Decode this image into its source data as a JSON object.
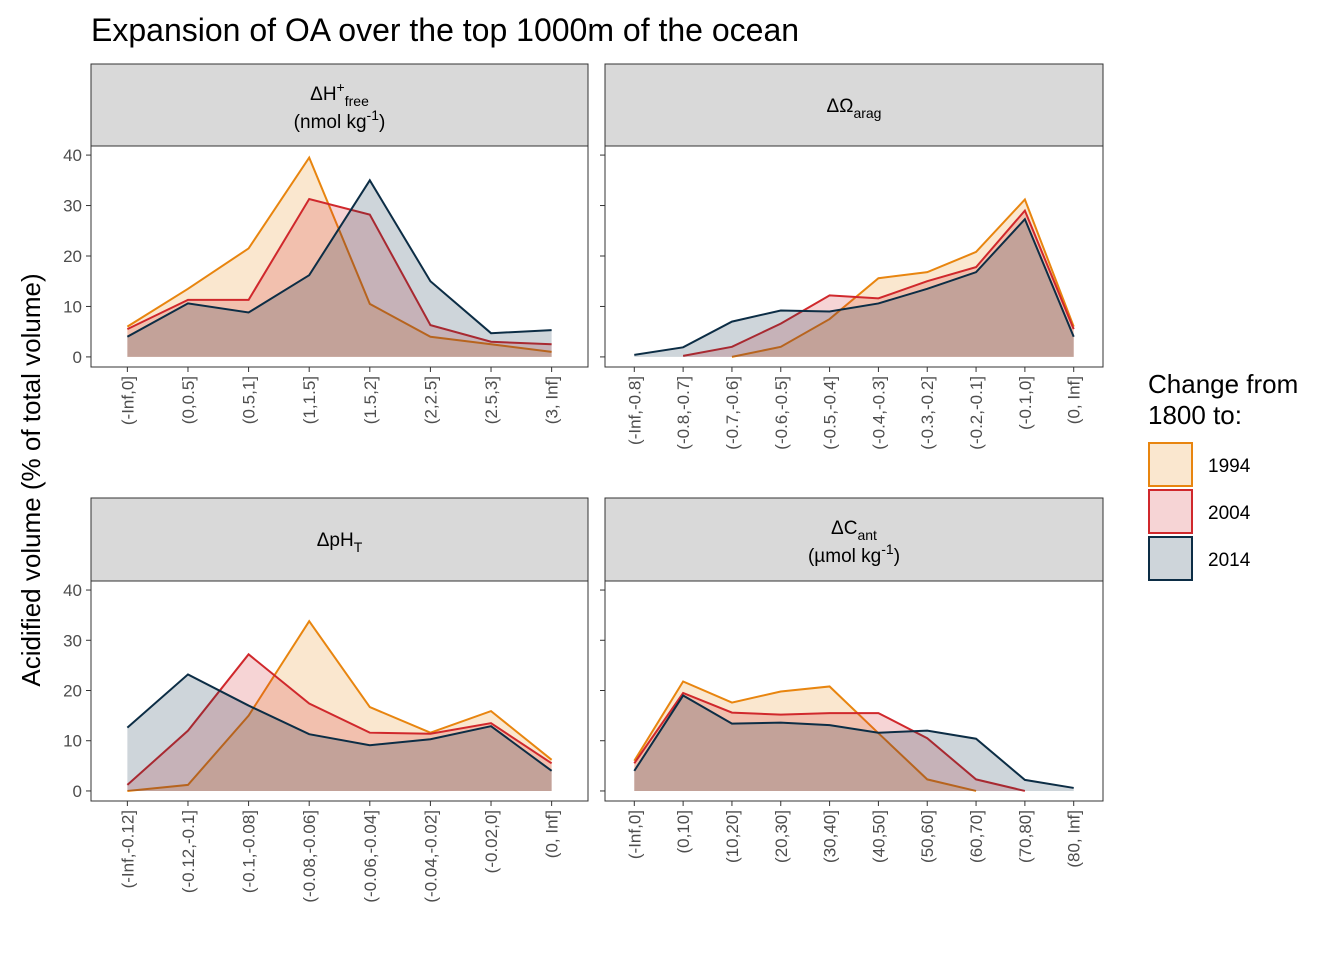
{
  "title": "Expansion of OA over the top 1000m of the ocean",
  "y_label": "Acidified volume (% of total volume)",
  "legend_title": [
    "Change from",
    "1800 to:"
  ],
  "chart_data": [
    {
      "type": "area",
      "title": [
        {
          "text": "ΔH"
        },
        {
          "text": "+",
          "pos": "sup"
        },
        {
          "text": "free",
          "pos": "sub"
        }
      ],
      "subtitle": [
        {
          "text": "(nmol kg"
        },
        {
          "text": "-1",
          "pos": "sup"
        },
        {
          "text": ")"
        }
      ],
      "categories": [
        "(-Inf,0]",
        "(0,0.5]",
        "(0.5,1]",
        "(1,1.5]",
        "(1.5,2]",
        "(2,2.5]",
        "(2.5,3]",
        "(3, Inf]"
      ],
      "ylim": [
        -2,
        41.8
      ],
      "yticks": [
        0,
        10,
        20,
        30,
        40
      ],
      "series": [
        {
          "name": "1994",
          "color": "#e8850f",
          "values": [
            6,
            13.5,
            21.5,
            39.5,
            10.5,
            4,
            2.5,
            1
          ]
        },
        {
          "name": "2004",
          "color": "#d0282c",
          "values": [
            5.5,
            11.3,
            11.3,
            31.3,
            28.2,
            6.3,
            3,
            2.5
          ]
        },
        {
          "name": "2014",
          "color": "#0c2d45",
          "values": [
            4,
            10.6,
            8.8,
            16.2,
            35,
            15,
            4.7,
            5.3
          ]
        }
      ]
    },
    {
      "type": "area",
      "title": [
        {
          "text": "ΔΩ"
        },
        {
          "text": "arag",
          "pos": "sub"
        }
      ],
      "categories": [
        "(-Inf,-0.8]",
        "(-0.8,-0.7]",
        "(-0.7,-0.6]",
        "(-0.6,-0.5]",
        "(-0.5,-0.4]",
        "(-0.4,-0.3]",
        "(-0.3,-0.2]",
        "(-0.2,-0.1]",
        "(-0.1,0]",
        "(0, Inf]"
      ],
      "ylim": [
        -2,
        41.8
      ],
      "yticks": [
        0,
        10,
        20,
        30,
        40
      ],
      "series": [
        {
          "name": "1994",
          "color": "#e8850f",
          "values": [
            null,
            null,
            0,
            2,
            7.5,
            15.6,
            16.8,
            20.8,
            31.2,
            6
          ]
        },
        {
          "name": "2004",
          "color": "#d0282c",
          "values": [
            null,
            0.2,
            2,
            6.6,
            12.2,
            11.6,
            15,
            17.8,
            29,
            5.5
          ]
        },
        {
          "name": "2014",
          "color": "#0c2d45",
          "values": [
            0.4,
            1.9,
            7,
            9.2,
            9,
            10.6,
            13.5,
            16.8,
            27.3,
            4
          ]
        }
      ]
    },
    {
      "type": "area",
      "title": [
        {
          "text": "ΔpH"
        },
        {
          "text": "T",
          "pos": "sub"
        }
      ],
      "categories": [
        "(-Inf,-0.12]",
        "(-0.12,-0.1]",
        "(-0.1,-0.08]",
        "(-0.08,-0.06]",
        "(-0.06,-0.04]",
        "(-0.04,-0.02]",
        "(-0.02,0]",
        "(0, Inf]"
      ],
      "ylim": [
        -2,
        41.8
      ],
      "yticks": [
        0,
        10,
        20,
        30,
        40
      ],
      "series": [
        {
          "name": "1994",
          "color": "#e8850f",
          "values": [
            0,
            1.2,
            15,
            33.8,
            16.7,
            11.6,
            15.9,
            6.2
          ]
        },
        {
          "name": "2004",
          "color": "#d0282c",
          "values": [
            1.2,
            12,
            27.2,
            17.4,
            11.6,
            11.4,
            13.5,
            5.5
          ]
        },
        {
          "name": "2014",
          "color": "#0c2d45",
          "values": [
            12.6,
            23.2,
            17,
            11.3,
            9.1,
            10.3,
            12.9,
            4
          ]
        }
      ]
    },
    {
      "type": "area",
      "title": [
        {
          "text": "ΔC"
        },
        {
          "text": "ant",
          "pos": "sub"
        }
      ],
      "subtitle": [
        {
          "text": "(µmol kg"
        },
        {
          "text": "-1",
          "pos": "sup"
        },
        {
          "text": ")"
        }
      ],
      "categories": [
        "(-Inf,0]",
        "(0,10]",
        "(10,20]",
        "(20,30]",
        "(30,40]",
        "(40,50]",
        "(50,60]",
        "(60,70]",
        "(70,80]",
        "(80, Inf]"
      ],
      "ylim": [
        -2,
        41.8
      ],
      "yticks": [
        0,
        10,
        20,
        30,
        40
      ],
      "series": [
        {
          "name": "1994",
          "color": "#e8850f",
          "values": [
            6,
            21.8,
            17.6,
            19.8,
            20.8,
            11.5,
            2.3,
            0,
            null,
            null
          ]
        },
        {
          "name": "2004",
          "color": "#d0282c",
          "values": [
            5.5,
            19.5,
            15.6,
            15.2,
            15.5,
            15.5,
            10.5,
            2.3,
            0,
            null
          ]
        },
        {
          "name": "2014",
          "color": "#0c2d45",
          "values": [
            4,
            19,
            13.4,
            13.6,
            13.1,
            11.6,
            12,
            10.4,
            2.2,
            0.6
          ]
        }
      ]
    }
  ]
}
